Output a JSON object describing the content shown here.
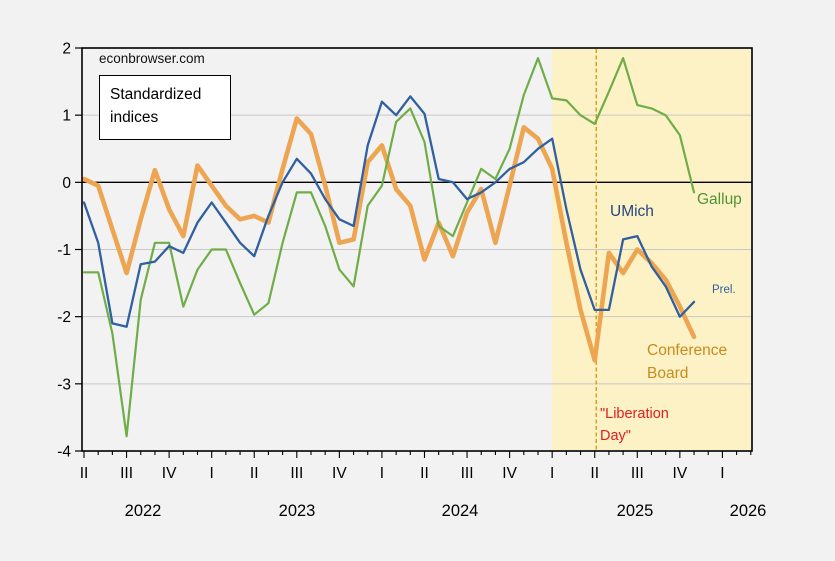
{
  "page": {
    "background": "#F2F2F3",
    "plot_background": "#FFFFFF"
  },
  "watermark": "econbrowser.com",
  "title_box": "Standardized indices",
  "labels": {
    "umich": "UMich",
    "gallup": "Gallup",
    "prel": "Prel.",
    "conference_board": "Conference Board",
    "liberation_day": "\"Liberation Day\""
  },
  "chart_data": {
    "type": "line",
    "title": "Standardized indices",
    "freq": "monthly",
    "xlabel": "",
    "ylabel": "",
    "ylim": [
      -4,
      2
    ],
    "yticks": [
      2,
      1,
      0,
      -1,
      -2,
      -3,
      -4
    ],
    "grid_values": [
      1,
      -1,
      -2,
      -3
    ],
    "grid_color": "#C8C8C8",
    "zero_line_color": "#000000",
    "x_quarter_labels": [
      "II",
      "III",
      "IV",
      "I",
      "II",
      "III",
      "IV",
      "I",
      "II",
      "III",
      "IV",
      "I",
      "II",
      "III",
      "IV",
      "I"
    ],
    "x_year_labels": [
      "2022",
      "2023",
      "2024",
      "2025",
      "2026"
    ],
    "months": [
      "2022-04",
      "2022-05",
      "2022-06",
      "2022-07",
      "2022-08",
      "2022-09",
      "2022-10",
      "2022-11",
      "2022-12",
      "2023-01",
      "2023-02",
      "2023-03",
      "2023-04",
      "2023-05",
      "2023-06",
      "2023-07",
      "2023-08",
      "2023-09",
      "2023-10",
      "2023-11",
      "2023-12",
      "2024-01",
      "2024-02",
      "2024-03",
      "2024-04",
      "2024-05",
      "2024-06",
      "2024-07",
      "2024-08",
      "2024-09",
      "2024-10",
      "2024-11",
      "2024-12",
      "2025-01",
      "2025-02",
      "2025-03",
      "2025-04",
      "2025-05",
      "2025-06",
      "2025-07",
      "2025-08",
      "2025-09",
      "2025-10",
      "2025-11"
    ],
    "series": [
      {
        "name": "UMich",
        "color": "#30609F",
        "width": 2.3,
        "values": [
          -0.3,
          -0.9,
          -2.1,
          -2.15,
          -1.22,
          -1.18,
          -0.95,
          -1.05,
          -0.6,
          -0.3,
          -0.6,
          -0.9,
          -1.1,
          -0.5,
          0.0,
          0.35,
          0.13,
          -0.25,
          -0.55,
          -0.65,
          0.55,
          1.2,
          1.0,
          1.28,
          1.02,
          0.05,
          0.0,
          -0.25,
          -0.15,
          0.0,
          0.2,
          0.3,
          0.5,
          0.65,
          -0.4,
          -1.3,
          -1.9,
          -1.9,
          -0.85,
          -0.8,
          -1.25,
          -1.55,
          -2.0,
          -1.78
        ]
      },
      {
        "name": "Gallup",
        "color": "#6FAD47",
        "width": 2.2,
        "values": [
          -1.34,
          -1.34,
          -2.25,
          -3.78,
          -1.75,
          -0.9,
          -0.9,
          -1.85,
          -1.3,
          -1.0,
          -1.0,
          -1.5,
          -1.97,
          -1.8,
          -0.9,
          -0.15,
          -0.15,
          -0.65,
          -1.3,
          -1.55,
          -0.35,
          -0.05,
          0.9,
          1.1,
          0.6,
          -0.65,
          -0.8,
          -0.3,
          0.2,
          0.05,
          0.5,
          1.3,
          1.85,
          1.25,
          1.22,
          1.0,
          0.87,
          1.35,
          1.85,
          1.15,
          1.1,
          1.0,
          0.7,
          -0.15
        ]
      },
      {
        "name": "Conference Board",
        "color": "#EDA552",
        "width": 4.6,
        "values": [
          0.05,
          -0.05,
          -0.7,
          -1.35,
          -0.55,
          0.18,
          -0.4,
          -0.8,
          0.25,
          -0.05,
          -0.35,
          -0.55,
          -0.5,
          -0.6,
          0.2,
          0.95,
          0.72,
          -0.05,
          -0.9,
          -0.85,
          0.3,
          0.55,
          -0.1,
          -0.35,
          -1.15,
          -0.6,
          -1.1,
          -0.45,
          -0.1,
          -0.9,
          -0.05,
          0.82,
          0.65,
          0.2,
          -0.9,
          -1.9,
          -2.65,
          -1.05,
          -1.35,
          -1.0,
          -1.2,
          -1.45,
          -1.85,
          -2.3
        ]
      }
    ],
    "shaded_region": {
      "from": "2025-01",
      "to_right_edge": true,
      "color": "#FCF2C6"
    },
    "vline": {
      "at": "2025-04",
      "style": "dashed",
      "color": "#DE9300",
      "label": "\"Liberation Day\""
    },
    "legend_position": "inline-annotations",
    "annotations": [
      "UMich",
      "Gallup",
      "Prel.",
      "Conference Board",
      "\"Liberation Day\""
    ]
  }
}
